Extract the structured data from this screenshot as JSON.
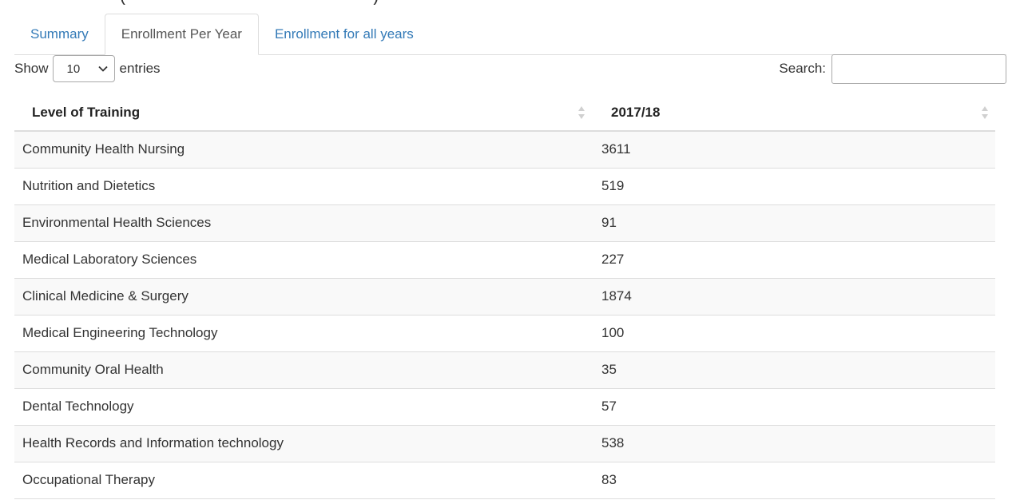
{
  "tabs": [
    {
      "label": "Summary",
      "active": false
    },
    {
      "label": "Enrollment Per Year",
      "active": true
    },
    {
      "label": "Enrollment for all years",
      "active": false
    }
  ],
  "length_control": {
    "show_label": "Show",
    "selected": "10",
    "entries_label": "entries"
  },
  "search": {
    "label": "Search:",
    "value": ""
  },
  "table": {
    "headers": [
      "Level of Training",
      "2017/18"
    ],
    "rows": [
      [
        "Community Health Nursing",
        "3611"
      ],
      [
        "Nutrition and Dietetics",
        "519"
      ],
      [
        "Environmental Health Sciences",
        "91"
      ],
      [
        "Medical Laboratory Sciences",
        "227"
      ],
      [
        "Clinical Medicine & Surgery",
        "1874"
      ],
      [
        "Medical Engineering Technology",
        "100"
      ],
      [
        "Community Oral Health",
        "35"
      ],
      [
        "Dental Technology",
        "57"
      ],
      [
        "Health Records and Information technology",
        "538"
      ],
      [
        "Occupational Therapy",
        "83"
      ]
    ]
  },
  "icons": {
    "select_arrow": "chevron-down-icon",
    "sort": "sort-both-icon"
  },
  "colors": {
    "link": "#337ab7",
    "active_tab_text": "#555555",
    "border": "#dddddd",
    "stripe": "#f9f9f9"
  }
}
